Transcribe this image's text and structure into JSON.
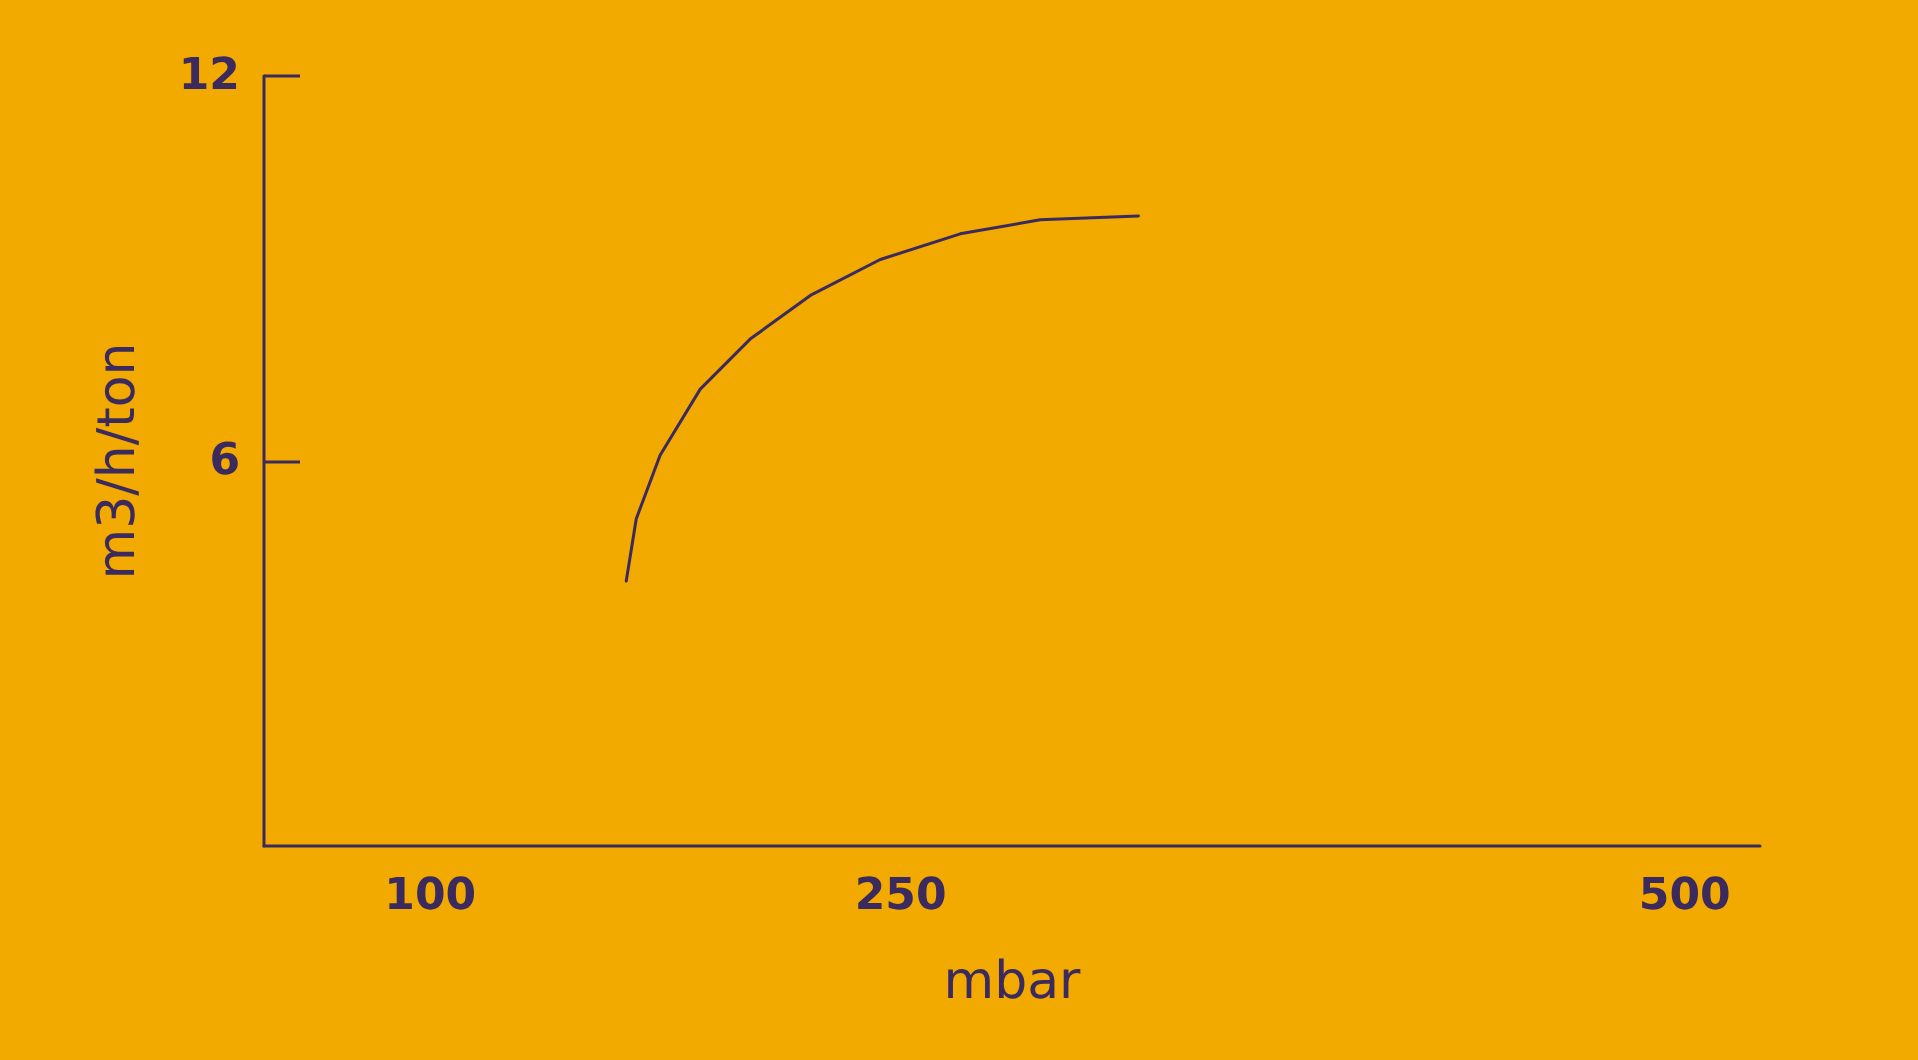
{
  "chart_data": {
    "type": "line",
    "xlabel": "mbar",
    "ylabel": "m3/h/ton",
    "xlim": [
      47,
      524
    ],
    "xticks": [
      100,
      250,
      500
    ],
    "ylim": [
      0,
      12
    ],
    "yticks": [
      6,
      12
    ],
    "grid": false,
    "marker": "none",
    "line_style": "solid",
    "series": [
      {
        "color": "#3b2a5e",
        "x": [
          162.5,
          165.7,
          173.3,
          186.1,
          202.0,
          221.2,
          243.5,
          269.0,
          294.5,
          325.8
        ],
        "values": [
          4.13,
          5.1,
          6.09,
          7.12,
          7.9,
          8.58,
          9.14,
          9.54,
          9.76,
          9.82
        ]
      }
    ]
  }
}
